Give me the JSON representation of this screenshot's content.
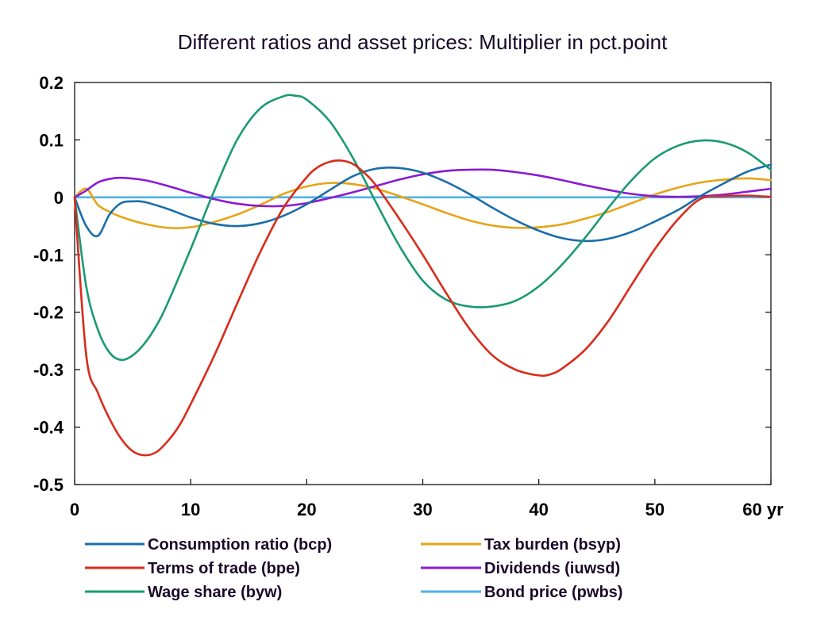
{
  "chart_data": {
    "type": "line",
    "title": "Different ratios and asset prices: Multiplier in pct.point",
    "xlabel": "",
    "ylabel": "",
    "x_unit": "yr",
    "xlim": [
      0,
      60
    ],
    "ylim": [
      -0.5,
      0.2
    ],
    "x_ticks": [
      0,
      10,
      20,
      30,
      40,
      50,
      60
    ],
    "x_tick_labels": [
      "0",
      "10",
      "20",
      "30",
      "40",
      "50",
      "60 yr"
    ],
    "y_ticks": [
      -0.5,
      -0.4,
      -0.3,
      -0.2,
      -0.1,
      0,
      0.1,
      0.2
    ],
    "y_tick_labels": [
      "-0.5",
      "-0.4",
      "-0.3",
      "-0.2",
      "-0.1",
      "0",
      "0.1",
      "0.2"
    ],
    "grid": false,
    "legend_position": "bottom",
    "series": [
      {
        "name": "Consumption ratio (bcp)",
        "color": "#1a6ea8",
        "x": [
          0,
          1,
          2,
          3,
          4,
          5,
          6,
          8,
          10,
          12,
          14,
          16,
          18,
          20,
          22,
          24,
          26,
          28,
          30,
          32,
          34,
          36,
          38,
          40,
          42,
          44,
          46,
          48,
          50,
          52,
          54,
          56,
          58,
          60
        ],
        "y": [
          0,
          -0.05,
          -0.067,
          -0.03,
          -0.01,
          -0.007,
          -0.008,
          -0.02,
          -0.035,
          -0.046,
          -0.05,
          -0.045,
          -0.032,
          -0.012,
          0.013,
          0.037,
          0.05,
          0.051,
          0.043,
          0.027,
          0.006,
          -0.018,
          -0.04,
          -0.058,
          -0.071,
          -0.076,
          -0.072,
          -0.06,
          -0.042,
          -0.022,
          0.003,
          0.025,
          0.045,
          0.057
        ]
      },
      {
        "name": "Tax burden (bsyp)",
        "color": "#e6a417",
        "x": [
          0,
          1,
          2,
          3,
          4,
          6,
          8,
          10,
          12,
          14,
          16,
          18,
          20,
          22,
          24,
          26,
          28,
          30,
          32,
          34,
          36,
          38,
          40,
          42,
          44,
          46,
          48,
          50,
          52,
          54,
          56,
          58,
          60
        ],
        "y": [
          0,
          0.015,
          -0.013,
          -0.025,
          -0.034,
          -0.046,
          -0.053,
          -0.052,
          -0.043,
          -0.03,
          -0.013,
          0.006,
          0.019,
          0.025,
          0.023,
          0.015,
          0.002,
          -0.012,
          -0.027,
          -0.04,
          -0.049,
          -0.053,
          -0.052,
          -0.047,
          -0.037,
          -0.025,
          -0.01,
          0.005,
          0.017,
          0.026,
          0.031,
          0.033,
          0.03
        ]
      },
      {
        "name": "Terms of trade (bpe)",
        "color": "#d92b1a",
        "x": [
          0,
          1,
          2,
          3,
          4,
          5,
          6,
          7,
          8,
          9,
          10,
          12,
          14,
          16,
          18,
          20,
          21,
          22,
          23,
          24,
          25,
          26,
          28,
          30,
          32,
          34,
          36,
          38,
          40,
          41,
          42,
          44,
          46,
          48,
          50,
          52,
          54,
          56,
          58,
          59,
          60
        ],
        "y": [
          0,
          -0.275,
          -0.34,
          -0.385,
          -0.42,
          -0.442,
          -0.449,
          -0.444,
          -0.425,
          -0.398,
          -0.36,
          -0.277,
          -0.185,
          -0.095,
          -0.018,
          0.035,
          0.053,
          0.062,
          0.064,
          0.058,
          0.042,
          0.02,
          -0.038,
          -0.1,
          -0.166,
          -0.228,
          -0.275,
          -0.3,
          -0.31,
          -0.308,
          -0.298,
          -0.265,
          -0.215,
          -0.152,
          -0.09,
          -0.038,
          -0.002,
          0.002,
          0.003,
          0.002,
          0.001
        ]
      },
      {
        "name": "Dividends (iuwsd)",
        "color": "#8a1ad4",
        "x": [
          0,
          1,
          2,
          3,
          4,
          6,
          8,
          10,
          12,
          14,
          16,
          18,
          20,
          22,
          24,
          26,
          28,
          30,
          32,
          34,
          36,
          38,
          40,
          42,
          44,
          46,
          48,
          50,
          52,
          54,
          56,
          58,
          60
        ],
        "y": [
          0,
          0.012,
          0.026,
          0.032,
          0.034,
          0.03,
          0.02,
          0.008,
          -0.003,
          -0.011,
          -0.015,
          -0.015,
          -0.01,
          -0.001,
          0.009,
          0.02,
          0.031,
          0.04,
          0.046,
          0.048,
          0.048,
          0.044,
          0.038,
          0.03,
          0.021,
          0.013,
          0.006,
          0.002,
          0.001,
          0.002,
          0.005,
          0.01,
          0.015
        ]
      },
      {
        "name": "Wage share (byw)",
        "color": "#1a9a74",
        "x": [
          0,
          1,
          2,
          3,
          4,
          5,
          6,
          7,
          8,
          10,
          12,
          14,
          16,
          18,
          19,
          20,
          22,
          24,
          26,
          28,
          30,
          32,
          34,
          36,
          38,
          40,
          42,
          44,
          46,
          48,
          50,
          52,
          54,
          56,
          58,
          60
        ],
        "y": [
          0,
          -0.155,
          -0.23,
          -0.27,
          -0.283,
          -0.275,
          -0.255,
          -0.225,
          -0.185,
          -0.09,
          0.01,
          0.1,
          0.155,
          0.176,
          0.177,
          0.17,
          0.132,
          0.068,
          -0.01,
          -0.085,
          -0.145,
          -0.178,
          -0.19,
          -0.19,
          -0.18,
          -0.155,
          -0.117,
          -0.07,
          -0.018,
          0.03,
          0.068,
          0.09,
          0.099,
          0.095,
          0.078,
          0.048
        ]
      },
      {
        "name": "Bond price (pwbs)",
        "color": "#4db3e6",
        "x": [
          0,
          60
        ],
        "y": [
          0,
          0
        ]
      }
    ]
  }
}
